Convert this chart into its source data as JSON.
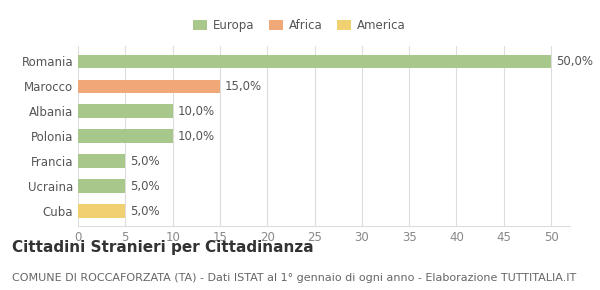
{
  "countries": [
    "Romania",
    "Marocco",
    "Albania",
    "Polonia",
    "Francia",
    "Ucraina",
    "Cuba"
  ],
  "values": [
    50.0,
    15.0,
    10.0,
    10.0,
    5.0,
    5.0,
    5.0
  ],
  "colors": [
    "#a8c78a",
    "#f0a878",
    "#a8c78a",
    "#a8c78a",
    "#a8c78a",
    "#a8c78a",
    "#f0d070"
  ],
  "legend_items": [
    {
      "label": "Europa",
      "color": "#a8c78a"
    },
    {
      "label": "Africa",
      "color": "#f0a878"
    },
    {
      "label": "America",
      "color": "#f0d070"
    }
  ],
  "xlim": [
    0,
    52
  ],
  "xticks": [
    0,
    5,
    10,
    15,
    20,
    25,
    30,
    35,
    40,
    45,
    50
  ],
  "title": "Cittadini Stranieri per Cittadinanza",
  "subtitle": "COMUNE DI ROCCAFORZATA (TA) - Dati ISTAT al 1° gennaio di ogni anno - Elaborazione TUTTITALIA.IT",
  "background_color": "#ffffff",
  "bar_height": 0.55,
  "label_fontsize": 8.5,
  "title_fontsize": 11,
  "subtitle_fontsize": 8,
  "tick_fontsize": 8.5,
  "grid_color": "#dddddd"
}
